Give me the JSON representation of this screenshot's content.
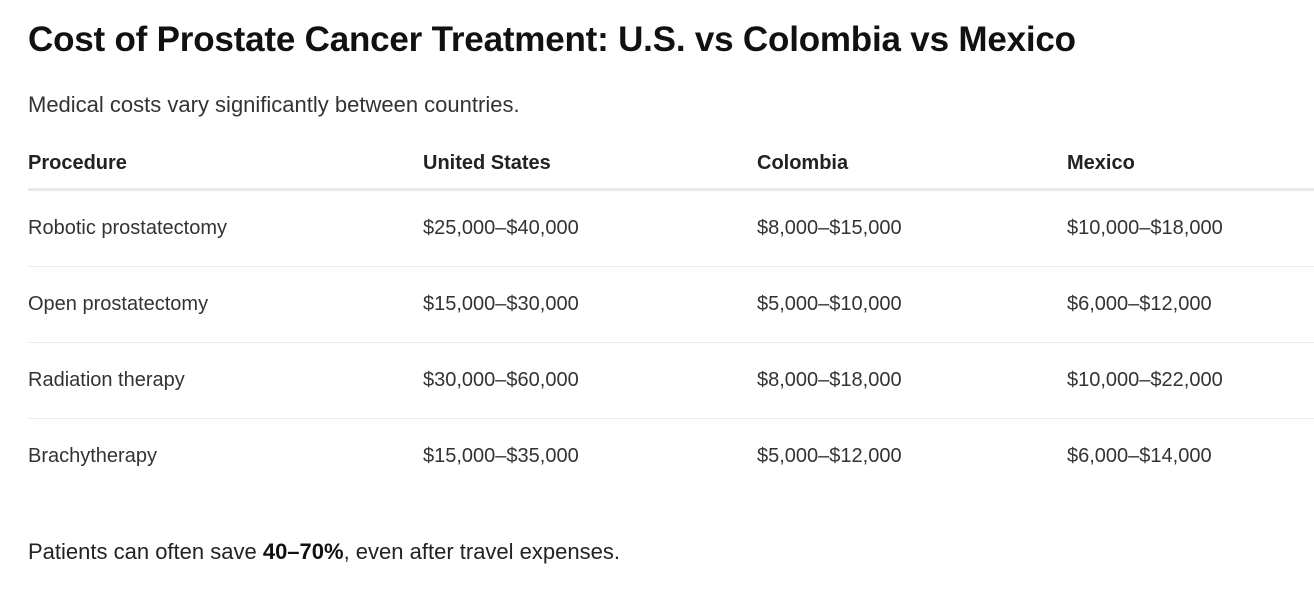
{
  "header": {
    "title": "Cost of Prostate Cancer Treatment: U.S. vs Colombia vs Mexico",
    "subtitle": "Medical costs vary significantly between countries."
  },
  "table": {
    "columns": [
      "Procedure",
      "United States",
      "Colombia",
      "Mexico"
    ],
    "rows": [
      [
        "Robotic prostatectomy",
        "$25,000–$40,000",
        "$8,000–$15,000",
        "$10,000–$18,000"
      ],
      [
        "Open prostatectomy",
        "$15,000–$30,000",
        "$5,000–$10,000",
        "$6,000–$12,000"
      ],
      [
        "Radiation therapy",
        "$30,000–$60,000",
        "$8,000–$18,000",
        "$10,000–$22,000"
      ],
      [
        "Brachytherapy",
        "$15,000–$35,000",
        "$5,000–$12,000",
        "$6,000–$14,000"
      ]
    ]
  },
  "note": {
    "before": "Patients can often save ",
    "bold": "40–70%",
    "after": ", even after travel expenses."
  }
}
